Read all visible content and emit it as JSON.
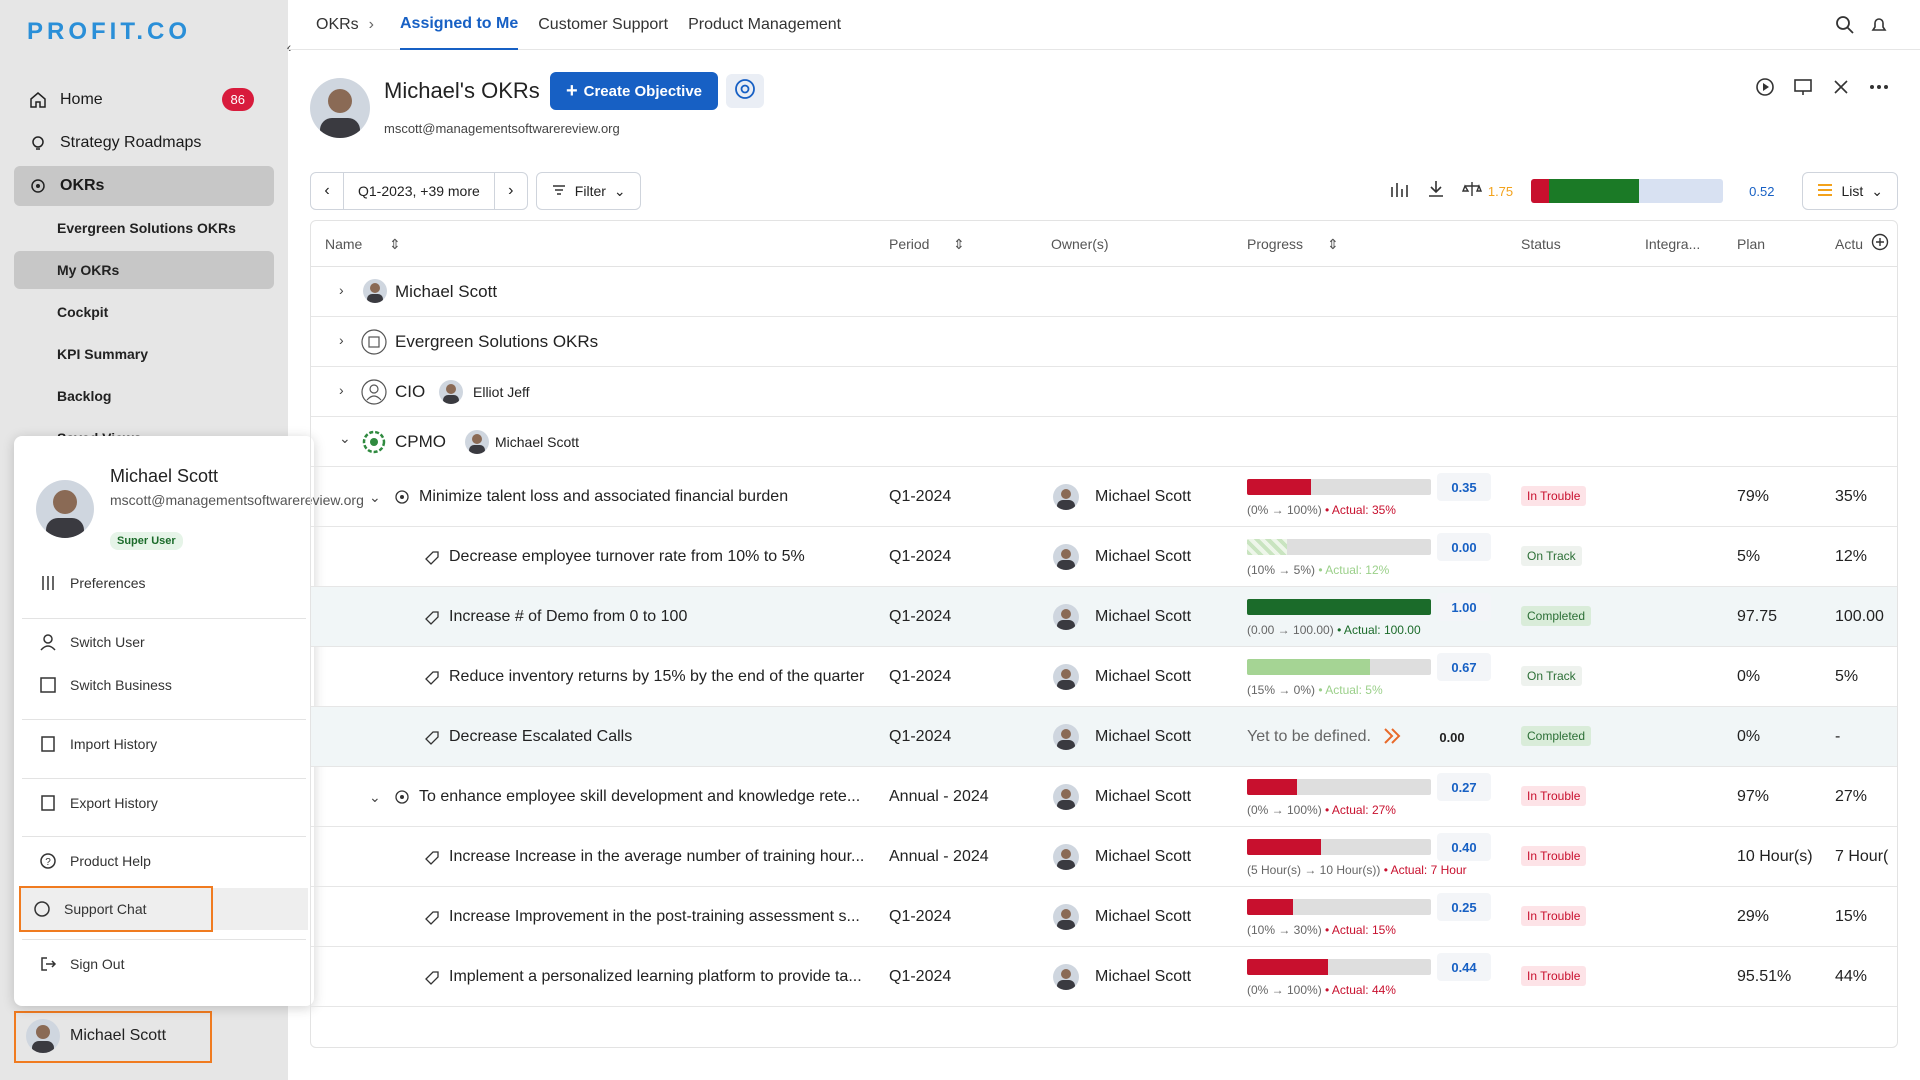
{
  "sidebar": {
    "logo": "PROFIT.CO",
    "nav": [
      {
        "label": "Home",
        "badge": "86"
      },
      {
        "label": "Strategy Roadmaps"
      },
      {
        "label": "OKRs"
      }
    ],
    "sub_items": [
      "Evergreen Solutions OKRs",
      "My OKRs",
      "Cockpit",
      "KPI Summary",
      "Backlog",
      "Saved Views"
    ],
    "user_chip": {
      "name": "Michael Scott"
    }
  },
  "popup": {
    "name": "Michael Scott",
    "email": "mscott@managementsoftwarereview.org",
    "role": "Super User",
    "items": [
      "Preferences",
      "Switch User",
      "Switch Business",
      "Import History",
      "Export History",
      "Product Help",
      "Support Chat",
      "Sign Out"
    ]
  },
  "topnav": {
    "breadcrumb": "OKRs",
    "tabs": [
      "Assigned to Me",
      "Customer Support",
      "Product Management"
    ]
  },
  "header": {
    "title": "Michael's OKRs",
    "email": "mscott@managementsoftwarereview.org",
    "create_label": "Create Objective"
  },
  "toolbar": {
    "period": "Q1-2023, +39 more",
    "filter": "Filter",
    "score": "1.75",
    "aggregate": "0.52",
    "view": "List"
  },
  "table": {
    "headers": [
      "Name",
      "Period",
      "Owner(s)",
      "Progress",
      "Status",
      "Integra...",
      "Plan",
      "Actu"
    ],
    "groups": [
      {
        "label": "Michael Scott"
      },
      {
        "label": "Evergreen Solutions OKRs"
      },
      {
        "label": "CIO",
        "owner": "Elliot Jeff"
      },
      {
        "label": "CPMO",
        "owner": "Michael Scott"
      }
    ],
    "rows": [
      {
        "name": "Minimize talent loss and associated financial burden",
        "period": "Q1-2024",
        "owner": "Michael Scott",
        "progress": 0.35,
        "value": "0.35",
        "range": "(0% → 100%)",
        "actual": "• Actual: 35%",
        "status": "In Trouble",
        "plan": "79%",
        "actu": "35%"
      },
      {
        "name": "Decrease employee turnover rate from 10% to 5%",
        "period": "Q1-2024",
        "owner": "Michael Scott",
        "progress": 0.0,
        "value": "0.00",
        "range": "(10% → 5%)",
        "actual": "• Actual: 12%",
        "status": "On Track",
        "plan": "5%",
        "actu": "12%"
      },
      {
        "name": "Increase # of Demo from 0 to 100",
        "period": "Q1-2024",
        "owner": "Michael Scott",
        "progress": 1.0,
        "value": "1.00",
        "range": "(0.00 → 100.00)",
        "actual": "• Actual: 100.00",
        "status": "Completed",
        "plan": "97.75",
        "actu": "100.00"
      },
      {
        "name": "Reduce inventory returns by 15% by the end of the quarter",
        "period": "Q1-2024",
        "owner": "Michael Scott",
        "progress": 0.67,
        "value": "0.67",
        "range": "(15% → 0%)",
        "actual": "• Actual: 5%",
        "status": "On Track",
        "plan": "0%",
        "actu": "5%"
      },
      {
        "name": "Decrease Escalated Calls",
        "period": "Q1-2024",
        "owner": "Michael Scott",
        "undefined": "Yet to be defined.",
        "value": "0.00",
        "status": "Completed",
        "plan": "0%",
        "actu": "-"
      },
      {
        "name": "To enhance employee skill development and knowledge rete...",
        "period": "Annual - 2024",
        "owner": "Michael Scott",
        "progress": 0.27,
        "value": "0.27",
        "range": "(0% → 100%)",
        "actual": "• Actual: 27%",
        "status": "In Trouble",
        "plan": "97%",
        "actu": "27%"
      },
      {
        "name": "Increase Increase in the average number of training hour...",
        "period": "Annual - 2024",
        "owner": "Michael Scott",
        "progress": 0.4,
        "value": "0.40",
        "range": "(5 Hour(s) → 10 Hour(s))",
        "actual": "• Actual: 7 Hour",
        "status": "In Trouble",
        "plan": "10 Hour(s)",
        "actu": "7 Hour("
      },
      {
        "name": "Increase Improvement in the post-training assessment s...",
        "period": "Q1-2024",
        "owner": "Michael Scott",
        "progress": 0.25,
        "value": "0.25",
        "range": "(10% → 30%)",
        "actual": "• Actual: 15%",
        "status": "In Trouble",
        "plan": "29%",
        "actu": "15%"
      },
      {
        "name": "Implement a personalized learning platform to provide ta...",
        "period": "Q1-2024",
        "owner": "Michael Scott",
        "progress": 0.44,
        "value": "0.44",
        "range": "(0% → 100%)",
        "actual": "• Actual: 44%",
        "status": "In Trouble",
        "plan": "95.51%",
        "actu": "44%"
      }
    ]
  },
  "colors": {
    "accent": "#1760c4",
    "trouble": "#c8102e",
    "complete": "#1b6b2a",
    "ontrack": "#a5d494"
  }
}
